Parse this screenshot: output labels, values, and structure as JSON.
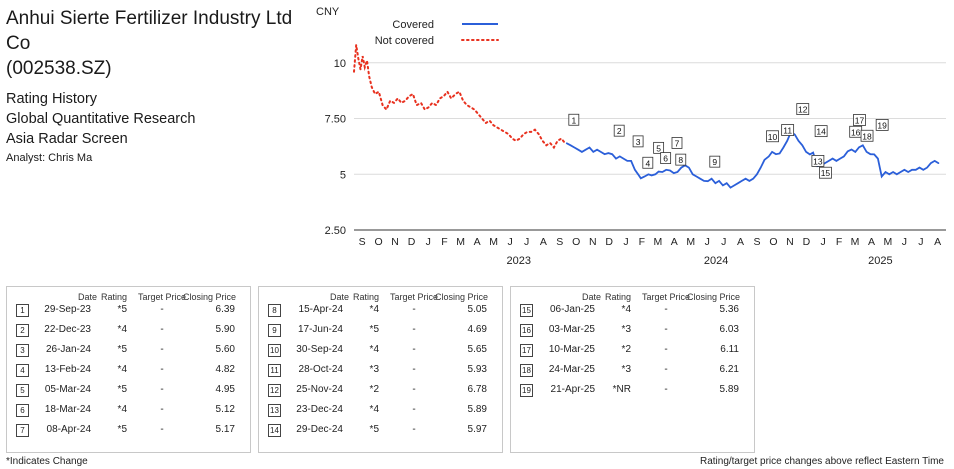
{
  "header": {
    "company_line1": "Anhui Sierte Fertilizer Industry Ltd Co",
    "company_line2": "(002538.SZ)",
    "rating_history": "Rating History",
    "research": "Global Quantitative Research",
    "screen": "Asia Radar Screen",
    "analyst": "Analyst: Chris Ma"
  },
  "table_headers": {
    "date": "Date",
    "rating": "Rating",
    "target": "Target Price",
    "closing": "Closing Price"
  },
  "table": [
    {
      "n": "1",
      "date": "29-Sep-23",
      "rating": "*5",
      "target": "-",
      "closing": "6.39"
    },
    {
      "n": "2",
      "date": "22-Dec-23",
      "rating": "*4",
      "target": "-",
      "closing": "5.90"
    },
    {
      "n": "3",
      "date": "26-Jan-24",
      "rating": "*5",
      "target": "-",
      "closing": "5.60"
    },
    {
      "n": "4",
      "date": "13-Feb-24",
      "rating": "*4",
      "target": "-",
      "closing": "4.82"
    },
    {
      "n": "5",
      "date": "05-Mar-24",
      "rating": "*5",
      "target": "-",
      "closing": "4.95"
    },
    {
      "n": "6",
      "date": "18-Mar-24",
      "rating": "*4",
      "target": "-",
      "closing": "5.12"
    },
    {
      "n": "7",
      "date": "08-Apr-24",
      "rating": "*5",
      "target": "-",
      "closing": "5.17"
    },
    {
      "n": "8",
      "date": "15-Apr-24",
      "rating": "*4",
      "target": "-",
      "closing": "5.05"
    },
    {
      "n": "9",
      "date": "17-Jun-24",
      "rating": "*5",
      "target": "-",
      "closing": "4.69"
    },
    {
      "n": "10",
      "date": "30-Sep-24",
      "rating": "*4",
      "target": "-",
      "closing": "5.65"
    },
    {
      "n": "11",
      "date": "28-Oct-24",
      "rating": "*3",
      "target": "-",
      "closing": "5.93"
    },
    {
      "n": "12",
      "date": "25-Nov-24",
      "rating": "*2",
      "target": "-",
      "closing": "6.78"
    },
    {
      "n": "13",
      "date": "23-Dec-24",
      "rating": "*4",
      "target": "-",
      "closing": "5.89"
    },
    {
      "n": "14",
      "date": "29-Dec-24",
      "rating": "*5",
      "target": "-",
      "closing": "5.97"
    },
    {
      "n": "15",
      "date": "06-Jan-25",
      "rating": "*4",
      "target": "-",
      "closing": "5.36"
    },
    {
      "n": "16",
      "date": "03-Mar-25",
      "rating": "*3",
      "target": "-",
      "closing": "6.03"
    },
    {
      "n": "17",
      "date": "10-Mar-25",
      "rating": "*2",
      "target": "-",
      "closing": "6.11"
    },
    {
      "n": "18",
      "date": "24-Mar-25",
      "rating": "*3",
      "target": "-",
      "closing": "6.21"
    },
    {
      "n": "19",
      "date": "21-Apr-25",
      "rating": "*NR",
      "target": "-",
      "closing": "5.89"
    }
  ],
  "footer": {
    "left": "*Indicates Change",
    "right": "Rating/target price changes above reflect Eastern Time"
  },
  "chart_data": {
    "type": "line",
    "unit_label": "CNY",
    "ylim": [
      2.5,
      12.5
    ],
    "yticks": [
      "2.50",
      "5",
      "7.50",
      "10"
    ],
    "ytick_values": [
      2.5,
      5,
      7.5,
      10
    ],
    "months": [
      "S",
      "O",
      "N",
      "D",
      "J",
      "F",
      "M",
      "A",
      "M",
      "J",
      "J",
      "A",
      "S",
      "O",
      "N",
      "D",
      "J",
      "F",
      "M",
      "A",
      "M",
      "J",
      "J",
      "A",
      "S",
      "O",
      "N",
      "D",
      "J",
      "F",
      "M",
      "A",
      "M",
      "J",
      "J",
      "A"
    ],
    "years": [
      "2023",
      "2024",
      "2025"
    ],
    "grid": "horizontal",
    "legend_position": "top-left",
    "colors": {
      "covered": "#2b5fd9",
      "not_covered": "#e8311f"
    },
    "series": [
      {
        "name": "Not covered",
        "style": "dotted",
        "x": [
          "2022-09-01",
          "2022-09-05",
          "2022-09-09",
          "2022-09-13",
          "2022-09-17",
          "2022-09-21",
          "2022-09-25",
          "2022-09-29",
          "2022-10-04",
          "2022-10-10",
          "2022-10-17",
          "2022-10-24",
          "2022-10-31",
          "2022-11-07",
          "2022-11-14",
          "2022-11-21",
          "2022-11-28",
          "2022-12-05",
          "2022-12-12",
          "2022-12-19",
          "2022-12-26",
          "2023-01-03",
          "2023-01-10",
          "2023-01-17",
          "2023-01-24",
          "2023-01-31",
          "2023-02-07",
          "2023-02-14",
          "2023-02-21",
          "2023-02-28",
          "2023-03-07",
          "2023-03-14",
          "2023-03-21",
          "2023-03-28",
          "2023-04-04",
          "2023-04-11",
          "2023-04-18",
          "2023-04-25",
          "2023-05-02",
          "2023-05-09",
          "2023-05-16",
          "2023-05-23",
          "2023-05-30",
          "2023-06-06",
          "2023-06-13",
          "2023-06-20",
          "2023-06-27",
          "2023-07-04",
          "2023-07-11",
          "2023-07-18",
          "2023-07-25",
          "2023-08-01",
          "2023-08-08",
          "2023-08-15",
          "2023-08-22",
          "2023-08-29",
          "2023-09-05",
          "2023-09-12",
          "2023-09-19",
          "2023-09-26"
        ],
        "y": [
          9.6,
          10.8,
          10.2,
          9.7,
          10.3,
          9.8,
          10.1,
          9.4,
          8.9,
          8.6,
          8.7,
          8.1,
          7.9,
          8.3,
          8.2,
          8.4,
          8.2,
          8.3,
          8.5,
          8.6,
          8.1,
          8.2,
          7.9,
          8.0,
          8.2,
          8.1,
          8.4,
          8.5,
          8.7,
          8.4,
          8.6,
          8.7,
          8.3,
          8.1,
          8.0,
          7.9,
          7.7,
          7.5,
          7.3,
          7.4,
          7.2,
          7.1,
          7.0,
          6.9,
          6.8,
          6.6,
          6.5,
          6.6,
          6.8,
          6.9,
          6.9,
          7.0,
          6.8,
          6.5,
          6.3,
          6.4,
          6.2,
          6.5,
          6.6,
          6.39
        ]
      },
      {
        "name": "Covered",
        "style": "solid",
        "x": [
          "2023-09-29",
          "2023-10-06",
          "2023-10-13",
          "2023-10-20",
          "2023-10-27",
          "2023-11-03",
          "2023-11-10",
          "2023-11-17",
          "2023-11-24",
          "2023-12-01",
          "2023-12-08",
          "2023-12-15",
          "2023-12-22",
          "2023-12-29",
          "2024-01-05",
          "2024-01-12",
          "2024-01-19",
          "2024-01-26",
          "2024-02-02",
          "2024-02-08",
          "2024-02-13",
          "2024-02-20",
          "2024-02-27",
          "2024-03-05",
          "2024-03-12",
          "2024-03-18",
          "2024-03-25",
          "2024-04-01",
          "2024-04-08",
          "2024-04-15",
          "2024-04-22",
          "2024-04-29",
          "2024-05-06",
          "2024-05-13",
          "2024-05-20",
          "2024-05-27",
          "2024-06-03",
          "2024-06-10",
          "2024-06-17",
          "2024-06-24",
          "2024-07-01",
          "2024-07-08",
          "2024-07-15",
          "2024-07-22",
          "2024-07-29",
          "2024-08-05",
          "2024-08-12",
          "2024-08-19",
          "2024-08-26",
          "2024-09-02",
          "2024-09-09",
          "2024-09-16",
          "2024-09-23",
          "2024-09-30",
          "2024-10-08",
          "2024-10-14",
          "2024-10-21",
          "2024-10-28",
          "2024-11-04",
          "2024-11-11",
          "2024-11-18",
          "2024-11-25",
          "2024-12-02",
          "2024-12-09",
          "2024-12-16",
          "2024-12-23",
          "2024-12-29",
          "2025-01-06",
          "2025-01-13",
          "2025-01-20",
          "2025-01-27",
          "2025-02-03",
          "2025-02-10",
          "2025-02-17",
          "2025-02-24",
          "2025-03-03",
          "2025-03-10",
          "2025-03-17",
          "2025-03-24",
          "2025-03-31",
          "2025-04-07",
          "2025-04-14",
          "2025-04-21",
          "2025-04-28",
          "2025-05-05",
          "2025-05-12",
          "2025-05-19",
          "2025-05-26",
          "2025-06-02",
          "2025-06-09",
          "2025-06-16",
          "2025-06-23",
          "2025-06-30",
          "2025-07-07",
          "2025-07-14",
          "2025-07-21",
          "2025-07-28",
          "2025-08-04",
          "2025-08-11",
          "2025-08-18"
        ],
        "y": [
          6.39,
          6.3,
          6.2,
          6.1,
          6.0,
          6.1,
          6.2,
          6.0,
          6.1,
          6.0,
          5.9,
          5.95,
          5.9,
          5.7,
          5.8,
          5.7,
          5.6,
          5.6,
          5.2,
          5.0,
          4.82,
          4.9,
          5.0,
          4.95,
          5.0,
          5.12,
          5.1,
          5.2,
          5.17,
          5.05,
          5.1,
          5.3,
          5.4,
          5.3,
          5.0,
          4.9,
          4.8,
          4.7,
          4.69,
          4.8,
          4.6,
          4.7,
          4.5,
          4.6,
          4.4,
          4.5,
          4.6,
          4.7,
          4.8,
          4.7,
          4.8,
          5.0,
          5.3,
          5.65,
          5.8,
          6.0,
          5.9,
          5.93,
          6.2,
          6.5,
          6.9,
          6.78,
          6.5,
          6.3,
          6.0,
          5.89,
          5.97,
          5.36,
          5.4,
          5.5,
          5.6,
          5.7,
          5.6,
          5.7,
          5.8,
          6.03,
          6.11,
          6.0,
          6.21,
          6.3,
          6.0,
          5.9,
          5.89,
          5.7,
          4.9,
          5.1,
          5.0,
          5.1,
          5.0,
          5.1,
          5.2,
          5.1,
          5.2,
          5.2,
          5.3,
          5.2,
          5.3,
          5.5,
          5.6,
          5.5
        ]
      }
    ]
  }
}
